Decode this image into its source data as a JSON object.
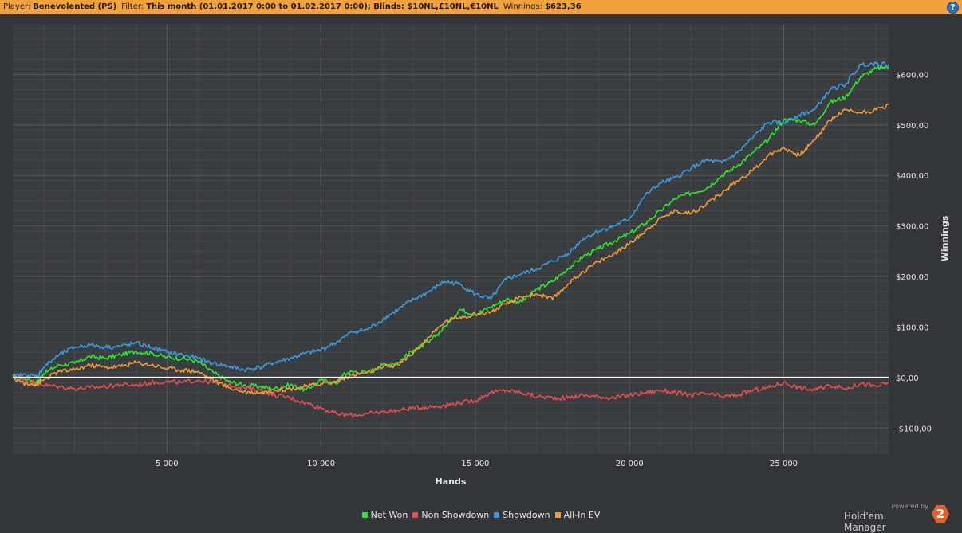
{
  "header": {
    "player_label": "Player:",
    "player_value": "Benevolented (PS)",
    "filter_label": "Filter:",
    "filter_value": "This month (01.01.2017 0:00 to 01.02.2017 0:00); Blinds: $10NL,£10NL,€10NL",
    "winnings_label": "Winnings:",
    "winnings_value": "$623,36",
    "help_glyph": "?"
  },
  "brand": {
    "powered_by": "Powered by",
    "name": "Hold'em Manager",
    "logo_glyph": "2"
  },
  "colors": {
    "background": "#333638",
    "plot_background": "#3a3d40",
    "grid_major": "#55585c",
    "grid_minor": "#45484b",
    "zero_line": "#ffffff",
    "header_bar": "#f2a23c",
    "axis_text": "#e6e6e6"
  },
  "chart_data": {
    "type": "line",
    "xlabel": "Hands",
    "ylabel": "Winnings",
    "xlim": [
      0,
      28400
    ],
    "ylim": [
      -150,
      700
    ],
    "xticks": [
      5000,
      10000,
      15000,
      20000,
      25000
    ],
    "xtick_labels": [
      "5 000",
      "10 000",
      "15 000",
      "20 000",
      "25 000"
    ],
    "yticks": [
      -100,
      0,
      100,
      200,
      300,
      400,
      500,
      600
    ],
    "ytick_labels": [
      "-$100,00",
      "$0,00",
      "$100,00",
      "$200,00",
      "$300,00",
      "$400,00",
      "$500,00",
      "$600,00"
    ],
    "y_axis_position": "right",
    "grid": true,
    "legend_position": "bottom-center",
    "series": [
      {
        "name": "Net Won",
        "color": "#2ce62c",
        "x": [
          0,
          500,
          800,
          1000,
          1500,
          2000,
          2500,
          3000,
          3500,
          4000,
          4500,
          5000,
          5500,
          6000,
          6500,
          7000,
          7500,
          8000,
          8500,
          9000,
          9500,
          10000,
          10500,
          10700,
          11000,
          11500,
          12000,
          12500,
          13000,
          13500,
          14000,
          14500,
          15000,
          15500,
          16000,
          16500,
          17000,
          17500,
          18000,
          18500,
          19000,
          19500,
          20000,
          20500,
          21000,
          21500,
          22000,
          22500,
          23000,
          23500,
          24000,
          24500,
          25000,
          25500,
          26000,
          26500,
          27000,
          27500,
          28000,
          28400
        ],
        "values": [
          3,
          -3,
          -10,
          8,
          25,
          28,
          42,
          38,
          45,
          52,
          48,
          40,
          38,
          32,
          10,
          -8,
          -15,
          -18,
          -22,
          -14,
          -25,
          -5,
          -12,
          5,
          12,
          10,
          25,
          30,
          55,
          70,
          100,
          135,
          125,
          140,
          155,
          150,
          175,
          190,
          215,
          240,
          255,
          270,
          285,
          305,
          330,
          355,
          365,
          375,
          400,
          420,
          445,
          470,
          510,
          510,
          500,
          545,
          555,
          595,
          612,
          615
        ]
      },
      {
        "name": "Non Showdown",
        "color": "#e84c4c",
        "x": [
          0,
          500,
          800,
          1000,
          1500,
          2000,
          2500,
          3000,
          3500,
          4000,
          4500,
          5000,
          5500,
          6000,
          6500,
          7000,
          7500,
          8000,
          8500,
          9000,
          9500,
          10000,
          10500,
          11000,
          11500,
          12000,
          12500,
          13000,
          13500,
          14000,
          14500,
          15000,
          15500,
          16000,
          16500,
          17000,
          17500,
          18000,
          18500,
          19000,
          19500,
          20000,
          20500,
          21000,
          21500,
          22000,
          22500,
          23000,
          23500,
          24000,
          24500,
          25000,
          25500,
          26000,
          26500,
          27000,
          27500,
          28000,
          28400
        ],
        "values": [
          0,
          -8,
          -12,
          -15,
          -18,
          -22,
          -20,
          -18,
          -14,
          -15,
          -10,
          -8,
          -10,
          -5,
          -10,
          -15,
          -20,
          -25,
          -35,
          -40,
          -50,
          -60,
          -72,
          -75,
          -72,
          -68,
          -65,
          -60,
          -58,
          -55,
          -50,
          -45,
          -30,
          -25,
          -30,
          -38,
          -40,
          -40,
          -35,
          -38,
          -40,
          -35,
          -30,
          -25,
          -30,
          -35,
          -32,
          -38,
          -35,
          -25,
          -20,
          -10,
          -20,
          -25,
          -15,
          -22,
          -12,
          -18,
          -10
        ]
      },
      {
        "name": "Showdown",
        "color": "#3a9ae0",
        "x": [
          0,
          500,
          800,
          1000,
          1500,
          2000,
          2500,
          3000,
          3500,
          4000,
          4500,
          5000,
          5500,
          6000,
          6500,
          7000,
          7500,
          8000,
          8500,
          9000,
          9500,
          10000,
          10500,
          11000,
          11500,
          12000,
          12500,
          13000,
          13500,
          14000,
          14500,
          15000,
          15500,
          16000,
          16500,
          17000,
          17500,
          18000,
          18500,
          19000,
          19500,
          20000,
          20500,
          21000,
          21500,
          22000,
          22500,
          23000,
          23500,
          24000,
          24500,
          25000,
          25500,
          26000,
          26500,
          27000,
          27500,
          28000,
          28400
        ],
        "values": [
          3,
          5,
          2,
          20,
          45,
          60,
          65,
          60,
          62,
          68,
          60,
          50,
          45,
          38,
          28,
          22,
          15,
          20,
          30,
          38,
          48,
          55,
          70,
          90,
          95,
          115,
          135,
          155,
          170,
          190,
          185,
          165,
          155,
          195,
          205,
          215,
          230,
          245,
          275,
          290,
          300,
          315,
          360,
          385,
          395,
          415,
          430,
          425,
          445,
          475,
          505,
          505,
          520,
          530,
          570,
          580,
          620,
          622,
          620
        ]
      },
      {
        "name": "All-In EV",
        "color": "#f29a33",
        "x": [
          0,
          500,
          800,
          1000,
          1500,
          2000,
          2500,
          3000,
          3500,
          4000,
          4500,
          5000,
          5500,
          6000,
          6500,
          7000,
          7500,
          8000,
          8500,
          9000,
          9500,
          10000,
          10500,
          11000,
          11500,
          12000,
          12500,
          13000,
          13500,
          14000,
          14500,
          15000,
          15500,
          16000,
          16500,
          17000,
          17500,
          18000,
          18500,
          19000,
          19500,
          20000,
          20500,
          21000,
          21500,
          22000,
          22500,
          23000,
          23500,
          24000,
          24500,
          25000,
          25500,
          26000,
          26500,
          27000,
          27500,
          28000,
          28400
        ],
        "values": [
          0,
          -15,
          -12,
          -5,
          12,
          15,
          25,
          20,
          22,
          30,
          25,
          18,
          15,
          12,
          -5,
          -20,
          -28,
          -30,
          -25,
          -22,
          -18,
          -12,
          -8,
          5,
          10,
          20,
          25,
          50,
          80,
          110,
          120,
          125,
          130,
          145,
          160,
          165,
          155,
          185,
          210,
          230,
          245,
          265,
          290,
          315,
          330,
          325,
          345,
          365,
          390,
          410,
          440,
          455,
          440,
          470,
          510,
          530,
          525,
          530,
          540
        ]
      }
    ]
  }
}
